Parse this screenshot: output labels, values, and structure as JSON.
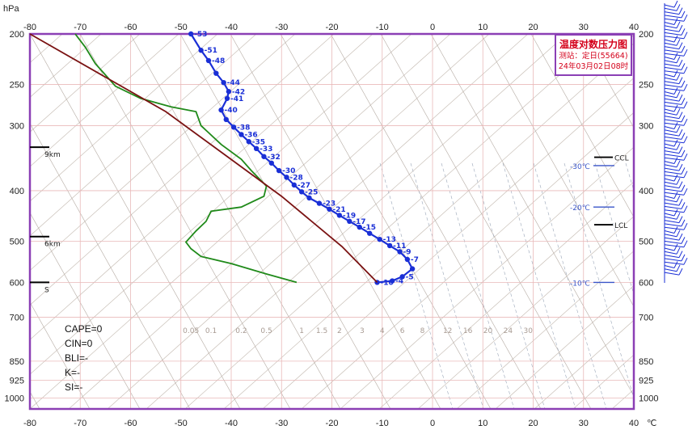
{
  "chart_data": {
    "type": "line",
    "title": "温度对数压力图",
    "station": "测站：定日(55664)",
    "time": "24年03月02日08时",
    "y_unit": "hPa",
    "x_unit": "℃",
    "x_ticks": [
      "-80",
      "-70",
      "-60",
      "-50",
      "-40",
      "-30",
      "-20",
      "-10",
      "0",
      "10",
      "20",
      "30",
      "40"
    ],
    "y_ticks": [
      "200",
      "250",
      "300",
      "400",
      "500",
      "600",
      "700",
      "850",
      "925",
      "1000"
    ],
    "xlim": [
      -80,
      40
    ],
    "ylim": [
      1050,
      200
    ],
    "height_marks": [
      "9km",
      "6km",
      "S"
    ],
    "level_marks": [
      "CCL",
      "LCL"
    ],
    "isotherm_labels": [
      "-30℃",
      "-20℃",
      "-10℃"
    ],
    "mixing_ratio_labels": [
      "0.05",
      "0.1",
      "0.2",
      "0.5",
      "1",
      "1.5",
      "2",
      "3",
      "4",
      "6",
      "8",
      "12",
      "16",
      "20",
      "24",
      "30"
    ],
    "temperature_labels": [
      "-53",
      "-51",
      "-48",
      "-44",
      "-42",
      "-41",
      "-40",
      "-38",
      "-36",
      "-35",
      "-33",
      "-32",
      "-30",
      "-28",
      "-27",
      "-25",
      "-23",
      "-21",
      "-19",
      "-17",
      "-15",
      "-13",
      "-11",
      "-9",
      "-7",
      "-5",
      "-4",
      "-10"
    ],
    "series": [
      {
        "color": "#1a2fd6",
        "x": [
          -48,
          -46,
          -44.5,
          -43,
          -41.5,
          -40.5,
          -40.8,
          -42,
          -41,
          -39.5,
          -38,
          -36.5,
          -35,
          -33.5,
          -32,
          -30.5,
          -29,
          -27.5,
          -26,
          -24.5,
          -22.5,
          -20.5,
          -18.5,
          -16.5,
          -14.5,
          -12.5,
          -10.5,
          -8.5,
          -6.5,
          -5,
          -4,
          -6,
          -8,
          -11
        ],
        "y": [
          200,
          215,
          225,
          238,
          248,
          258,
          266,
          280,
          292,
          302,
          312,
          322,
          332,
          344,
          354,
          366,
          377,
          390,
          402,
          413,
          423,
          434,
          446,
          458,
          470,
          483,
          496,
          510,
          524,
          542,
          565,
          585,
          596,
          600
        ]
      },
      {
        "color": "#208a1a",
        "x": [
          -71,
          -69,
          -67,
          -63,
          -58,
          -52,
          -47,
          -46,
          -42,
          -38,
          -36,
          -33,
          -33.5,
          -38,
          -44,
          -45,
          -47,
          -49,
          -48,
          -46,
          -40,
          -33,
          -27
        ],
        "y": [
          200,
          212,
          228,
          252,
          266,
          276,
          282,
          300,
          326,
          348,
          366,
          392,
          410,
          430,
          438,
          458,
          478,
          502,
          517,
          535,
          552,
          578,
          600
        ]
      },
      {
        "color": "#7a1212",
        "x": [
          -80,
          -53,
          -30,
          -18,
          -11
        ],
        "y": [
          200,
          282,
          410,
          512,
          600
        ]
      }
    ],
    "indices": [
      "CAPE=0",
      "CIN=0",
      "BLI=-",
      "K=-",
      "SI=-"
    ]
  }
}
